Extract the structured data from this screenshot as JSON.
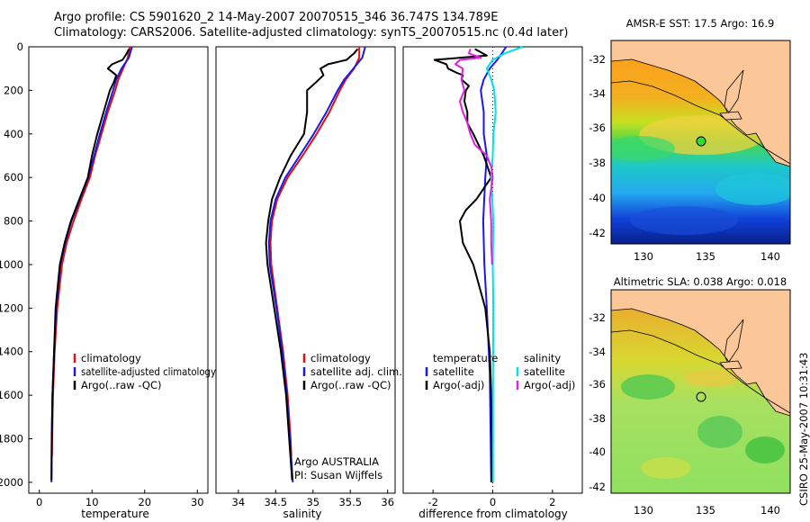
{
  "header": {
    "line1": "Argo profile: CS 5901620_2 14-May-2007 20070515_346 36.747S 134.789E",
    "line2": "Climatology: CARS2006. Satellite-adjusted climatology: synTS_20070515.nc (0.4d later)"
  },
  "footer_stamp": "CSIRO 25-May-2007 10:31:43",
  "colors": {
    "red": "#e01010",
    "blue": "#1a1ae6",
    "black": "#000000",
    "cyan": "#00e0ee",
    "magenta": "#e020e0"
  },
  "chart_data": [
    {
      "type": "line",
      "panel": "temperature",
      "xlabel": "temperature",
      "ylabel": "",
      "xlim": [
        -2,
        32
      ],
      "ylim": [
        2050,
        0
      ],
      "y_reversed": true,
      "xticks": [
        0,
        10,
        20,
        30
      ],
      "yticks": [
        0,
        200,
        400,
        600,
        800,
        1000,
        1200,
        1400,
        1600,
        1800,
        2000
      ],
      "legend": [
        "climatology",
        "satellite-adjusted climatology",
        "Argo(..raw -QC)"
      ],
      "legend_placement": "lower-right",
      "series": [
        {
          "name": "climatology",
          "color": "#e01010",
          "depth": [
            0,
            50,
            100,
            150,
            200,
            300,
            400,
            500,
            600,
            700,
            800,
            900,
            1000,
            1200,
            1400,
            1600,
            1800,
            1880
          ],
          "values": [
            17.2,
            16.8,
            15.9,
            15.0,
            14.4,
            13.0,
            11.8,
            10.6,
            9.6,
            8.0,
            6.5,
            5.2,
            4.3,
            3.4,
            2.9,
            2.6,
            2.45,
            2.4
          ]
        },
        {
          "name": "satellite-adjusted climatology",
          "color": "#1a1ae6",
          "depth": [
            0,
            50,
            100,
            150,
            200,
            300,
            400,
            500,
            600,
            700,
            800,
            900,
            1000,
            1200,
            1400,
            1600,
            1800,
            2000
          ],
          "values": [
            17.6,
            17.0,
            15.6,
            14.6,
            14.0,
            12.7,
            11.5,
            10.4,
            9.3,
            7.7,
            6.1,
            4.9,
            4.0,
            3.2,
            2.8,
            2.5,
            2.35,
            2.3
          ]
        },
        {
          "name": "Argo(..raw -QC)",
          "color": "#000000",
          "depth": [
            10,
            30,
            60,
            80,
            100,
            130,
            160,
            200,
            300,
            400,
            500,
            600,
            700,
            800,
            900,
            1000,
            1200,
            1400,
            1600,
            1800,
            1990
          ],
          "values": [
            17.0,
            16.6,
            15.8,
            13.8,
            13.0,
            14.6,
            14.2,
            13.4,
            12.2,
            11.0,
            10.0,
            9.2,
            7.6,
            6.0,
            4.8,
            3.9,
            3.1,
            2.8,
            2.5,
            2.35,
            2.3
          ]
        }
      ]
    },
    {
      "type": "line",
      "panel": "salinity",
      "xlabel": "salinity",
      "ylabel": "",
      "xlim": [
        33.7,
        36.1
      ],
      "ylim": [
        2050,
        0
      ],
      "y_reversed": true,
      "xticks": [
        34,
        34.5,
        35,
        35.5,
        36
      ],
      "xticklabels": [
        "34",
        "34.5",
        "35",
        "35.5",
        "36"
      ],
      "legend": [
        "climatology",
        "satellite adj. clim.",
        "Argo(..raw -QC)"
      ],
      "legend_placement": "lower-right",
      "annotation": [
        "Argo AUSTRALIA",
        "PI: Susan Wijffels"
      ],
      "series": [
        {
          "name": "climatology",
          "color": "#e01010",
          "depth": [
            0,
            50,
            100,
            150,
            200,
            300,
            400,
            500,
            600,
            700,
            800,
            900,
            1000,
            1200,
            1400,
            1600,
            1800,
            1880
          ],
          "values": [
            35.62,
            35.62,
            35.55,
            35.44,
            35.36,
            35.22,
            35.05,
            34.86,
            34.66,
            34.52,
            34.45,
            34.43,
            34.44,
            34.52,
            34.6,
            34.66,
            34.7,
            34.71
          ]
        },
        {
          "name": "satellite adj. clim.",
          "color": "#1a1ae6",
          "depth": [
            0,
            50,
            100,
            150,
            200,
            300,
            400,
            500,
            600,
            700,
            800,
            900,
            1000,
            1200,
            1400,
            1600,
            1800,
            2000
          ],
          "values": [
            35.7,
            35.66,
            35.54,
            35.42,
            35.33,
            35.18,
            35.01,
            34.82,
            34.63,
            34.5,
            34.43,
            34.41,
            34.42,
            34.51,
            34.59,
            34.65,
            34.69,
            34.73
          ]
        },
        {
          "name": "Argo(..raw -QC)",
          "color": "#000000",
          "depth": [
            10,
            30,
            60,
            80,
            100,
            130,
            160,
            200,
            300,
            400,
            500,
            600,
            700,
            800,
            900,
            1000,
            1200,
            1400,
            1600,
            1800,
            1990
          ],
          "values": [
            35.6,
            35.55,
            35.45,
            35.2,
            35.1,
            35.14,
            35.05,
            34.92,
            34.92,
            34.88,
            34.7,
            34.56,
            34.45,
            34.4,
            34.37,
            34.39,
            34.48,
            34.57,
            34.64,
            34.68,
            34.72
          ]
        }
      ]
    },
    {
      "type": "line",
      "panel": "difference",
      "xlabel": "difference from climatology",
      "ylabel": "",
      "xlim": [
        -3,
        3
      ],
      "ylim": [
        2050,
        0
      ],
      "y_reversed": true,
      "xticks": [
        -2,
        0,
        2
      ],
      "zero_line": "dotted",
      "legend_temperature": [
        "temperature",
        "satellite",
        "Argo(-adj)"
      ],
      "legend_salinity": [
        "salinity",
        "satellite",
        "Argo(-adj)"
      ],
      "legend_placement": "lower-left and lower-right",
      "series": [
        {
          "name": "temperature satellite",
          "color": "#1a1ae6",
          "depth": [
            0,
            30,
            60,
            100,
            150,
            200,
            300,
            400,
            500,
            600,
            800,
            1000,
            1200,
            1500,
            2000
          ],
          "values": [
            0.45,
            0.3,
            0.15,
            -0.1,
            -0.3,
            -0.4,
            -0.3,
            -0.3,
            -0.2,
            -0.25,
            -0.32,
            -0.28,
            -0.2,
            -0.1,
            -0.05
          ]
        },
        {
          "name": "temperature Argo(-adj)",
          "color": "#000000",
          "depth": [
            10,
            40,
            60,
            80,
            100,
            120,
            130,
            150,
            180,
            200,
            250,
            300,
            350,
            400,
            500,
            600,
            650,
            700,
            750,
            800,
            900,
            1000,
            1200,
            1400,
            1600,
            1800,
            2000
          ],
          "values": [
            -0.6,
            -0.2,
            -1.95,
            -1.55,
            -1.5,
            -1.2,
            -1.0,
            -1.05,
            -0.8,
            -0.9,
            -0.95,
            -0.85,
            -0.85,
            -0.65,
            -0.3,
            -0.05,
            -0.3,
            -0.55,
            -0.9,
            -1.1,
            -1.0,
            -0.65,
            -0.25,
            -0.1,
            -0.05,
            -0.03,
            -0.03
          ]
        },
        {
          "name": "salinity satellite",
          "color": "#00e0ee",
          "depth": [
            0,
            30,
            60,
            100,
            150,
            200,
            300,
            400,
            500,
            600,
            800,
            1000,
            1200,
            1500,
            2000
          ],
          "values": [
            1.0,
            0.4,
            0.0,
            -0.2,
            -0.05,
            0.05,
            0.1,
            0.02,
            0.0,
            -0.05,
            0.02,
            0.0,
            0.02,
            0.01,
            0.01
          ]
        },
        {
          "name": "salinity Argo(-adj)",
          "color": "#e020e0",
          "depth": [
            10,
            30,
            50,
            60,
            80,
            100,
            150,
            200,
            250,
            300,
            350,
            400,
            450,
            500,
            550,
            600,
            700,
            800,
            900,
            1000
          ],
          "values": [
            -0.75,
            -0.8,
            -0.4,
            -1.1,
            -1.25,
            -1.0,
            -1.05,
            -0.95,
            -1.1,
            -1.0,
            -0.85,
            -0.75,
            -0.6,
            -0.2,
            -0.05,
            0.0,
            -0.1,
            -0.05,
            -0.05,
            -0.02
          ]
        }
      ]
    }
  ],
  "maps": [
    {
      "title": "AMSR-E SST: 17.5 Argo: 16.9",
      "xticks": [
        "130",
        "135",
        "140"
      ],
      "yticks": [
        "-32",
        "-34",
        "-36",
        "-38",
        "-40",
        "-42"
      ],
      "marker": {
        "lon": 134.8,
        "lat": -36.75,
        "fill": "#2ee02e"
      }
    },
    {
      "title": "Altimetric SLA: 0.038 Argo: 0.018",
      "xticks": [
        "130",
        "135",
        "140"
      ],
      "yticks": [
        "-32",
        "-34",
        "-36",
        "-38",
        "-40",
        "-42"
      ],
      "marker": {
        "lon": 134.8,
        "lat": -36.75,
        "fill": "none"
      }
    }
  ]
}
